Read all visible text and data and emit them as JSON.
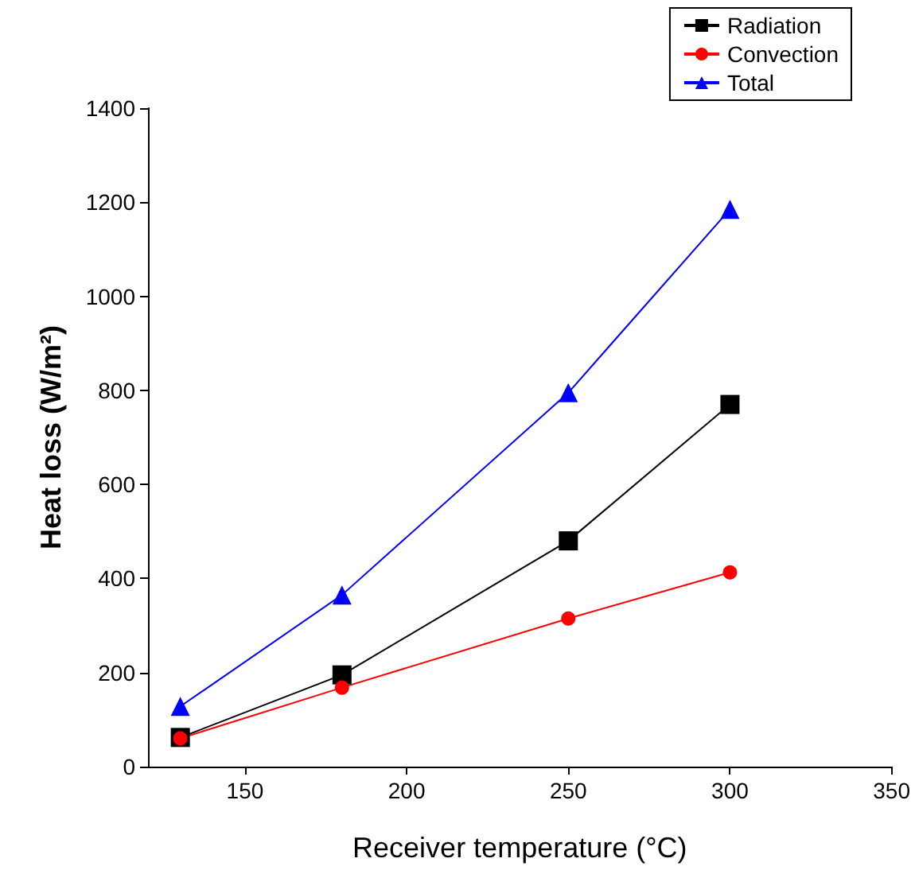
{
  "chart_data": {
    "type": "line",
    "xlabel": "Receiver temperature (°C)",
    "ylabel": "Heat loss (W/m²)",
    "x": [
      130,
      180,
      250,
      300
    ],
    "series": [
      {
        "name": "Radiation",
        "color": "#000000",
        "marker": "square",
        "values": [
          62,
          195,
          480,
          770
        ]
      },
      {
        "name": "Convection",
        "color": "#ff0000",
        "marker": "circle",
        "values": [
          60,
          168,
          315,
          413
        ]
      },
      {
        "name": "Total",
        "color": "#0000ff",
        "marker": "triangle",
        "values": [
          128,
          365,
          795,
          1185
        ]
      }
    ],
    "xlim": [
      120,
      350
    ],
    "xticks": [
      150,
      200,
      250,
      300,
      350
    ],
    "ylim": [
      0,
      1400
    ],
    "yticks": [
      0,
      200,
      400,
      600,
      800,
      1000,
      1200,
      1400
    ],
    "grid": false,
    "legend": "top right"
  }
}
